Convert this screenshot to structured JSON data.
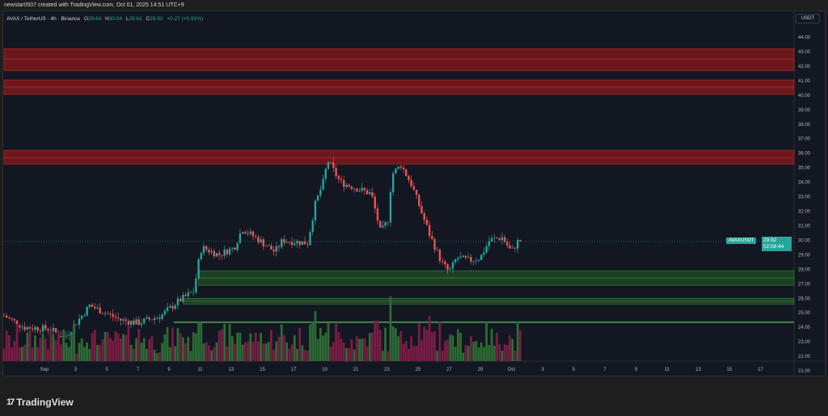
{
  "header": {
    "credit": "newstar0507 created with TradingView.com, Oct 01, 2025 14:51 UTC+9"
  },
  "legend": {
    "symbol": "AVAX / TetherUS · 4h · Binance",
    "o_label": "O",
    "o": "29.64",
    "h_label": "H",
    "h": "30.04",
    "l_label": "L",
    "l": "29.61",
    "c_label": "C",
    "c": "29.92",
    "change": "+0.27 (+0.91%)"
  },
  "price_axis": {
    "unit": "USDT",
    "ticks": [
      "44.00",
      "43.00",
      "42.00",
      "41.00",
      "40.00",
      "39.00",
      "38.00",
      "37.00",
      "36.00",
      "35.00",
      "34.00",
      "33.00",
      "32.00",
      "31.00",
      "30.00",
      "29.00",
      "28.00",
      "27.00",
      "26.00",
      "25.00",
      "24.00",
      "23.00",
      "22.00",
      "21.00"
    ]
  },
  "time_axis": {
    "ticks": [
      "Sep",
      "3",
      "5",
      "7",
      "9",
      "11",
      "13",
      "15",
      "17",
      "19",
      "21",
      "23",
      "25",
      "27",
      "29",
      "Oct",
      "3",
      "5",
      "7",
      "9",
      "11",
      "13",
      "15",
      "17"
    ]
  },
  "last_price": {
    "symbol": "AVAXUSDT",
    "price": "29.92",
    "countdown": "02:08:44"
  },
  "colors": {
    "up": "#26a69a",
    "down": "#ef5350",
    "vol_up": "#2e6b34",
    "vol_down": "#7a1c44",
    "resistance": "#8b1a1a",
    "support": "#1f4d24"
  },
  "chart_data": {
    "type": "candlestick",
    "timeframe": "4h",
    "ylim": [
      20.6,
      45.5
    ],
    "price_path_days_from_sep1": [
      [
        -2.6,
        24.8
      ],
      [
        -1.3,
        24.0
      ],
      [
        0.3,
        23.9
      ],
      [
        1.3,
        23.3
      ],
      [
        2.4,
        24.8
      ],
      [
        2.9,
        25.5
      ],
      [
        3.9,
        25.0
      ],
      [
        4.9,
        24.5
      ],
      [
        6.0,
        24.3
      ],
      [
        7.5,
        24.8
      ],
      [
        8.6,
        25.8
      ],
      [
        9.6,
        26.5
      ],
      [
        9.9,
        28.5
      ],
      [
        10.1,
        29.5
      ],
      [
        11.2,
        29.0
      ],
      [
        12.2,
        29.5
      ],
      [
        12.7,
        30.8
      ],
      [
        13.8,
        30.0
      ],
      [
        14.8,
        29.2
      ],
      [
        15.3,
        30.0
      ],
      [
        16.9,
        29.8
      ],
      [
        17.4,
        32.5
      ],
      [
        17.9,
        34.0
      ],
      [
        18.2,
        35.5
      ],
      [
        19.0,
        34.0
      ],
      [
        20.0,
        33.6
      ],
      [
        21.0,
        33.2
      ],
      [
        21.6,
        30.5
      ],
      [
        22.1,
        31.5
      ],
      [
        22.3,
        34.5
      ],
      [
        22.9,
        35.2
      ],
      [
        23.6,
        33.8
      ],
      [
        24.2,
        32.0
      ],
      [
        24.7,
        30.5
      ],
      [
        25.5,
        28.5
      ],
      [
        26.0,
        27.8
      ],
      [
        26.5,
        28.8
      ],
      [
        27.3,
        28.6
      ],
      [
        28.0,
        28.8
      ],
      [
        28.6,
        30.0
      ],
      [
        29.4,
        30.2
      ],
      [
        30.0,
        29.2
      ],
      [
        30.4,
        29.9
      ],
      [
        30.6,
        29.92
      ]
    ],
    "zones": [
      {
        "type": "resistance",
        "low": 41.7,
        "high": 43.2,
        "mid": 42.5
      },
      {
        "type": "resistance",
        "low": 40.05,
        "high": 41.05,
        "mid": 40.55
      },
      {
        "type": "resistance",
        "low": 35.25,
        "high": 36.2,
        "mid": 35.7
      },
      {
        "type": "support",
        "low": 26.9,
        "high": 27.9,
        "mid": 27.4,
        "from_day": 9.9
      },
      {
        "type": "support",
        "low": 25.6,
        "high": 26.0,
        "mid": 25.8,
        "from_day": 8.9
      },
      {
        "type": "support_line",
        "price": 24.35,
        "from_day": 8.3
      }
    ]
  }
}
